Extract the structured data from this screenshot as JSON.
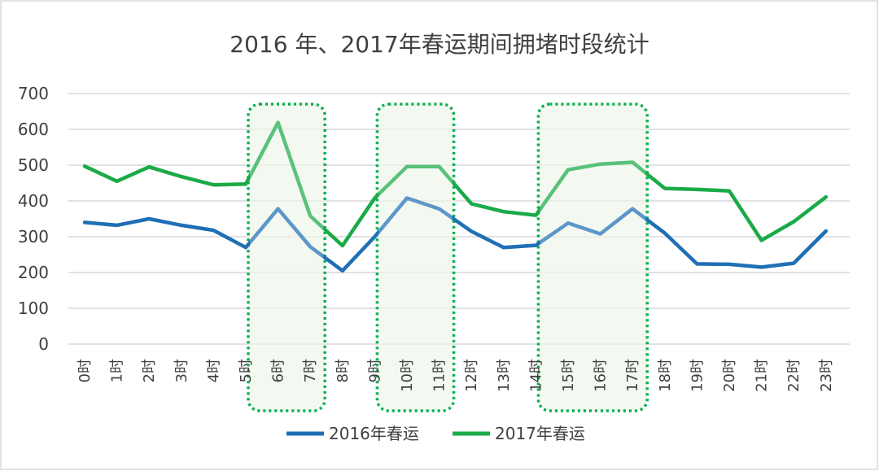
{
  "chart_data": {
    "type": "line",
    "title": "2016 年、2017年春运期间拥堵时段统计",
    "categories": [
      "0时",
      "1时",
      "2时",
      "3时",
      "4时",
      "5时",
      "6时",
      "7时",
      "8时",
      "9时",
      "10时",
      "11时",
      "12时",
      "13时",
      "14时",
      "15时",
      "16时",
      "17时",
      "18时",
      "19时",
      "20时",
      "21时",
      "22时",
      "23时"
    ],
    "series": [
      {
        "name": "2016年春运",
        "color": "#1f6fb5",
        "values": [
          340,
          332,
          350,
          332,
          318,
          270,
          378,
          272,
          205,
          300,
          408,
          378,
          315,
          270,
          276,
          338,
          308,
          378,
          310,
          224,
          223,
          215,
          226,
          316
        ]
      },
      {
        "name": "2017年春运",
        "color": "#1aaa47",
        "values": [
          497,
          455,
          495,
          468,
          445,
          447,
          619,
          358,
          275,
          408,
          496,
          496,
          392,
          370,
          360,
          487,
          503,
          508,
          435,
          432,
          428,
          290,
          342,
          411
        ]
      }
    ],
    "ylim": [
      0,
      700
    ],
    "yticks": [
      0,
      100,
      200,
      300,
      400,
      500,
      600,
      700
    ],
    "grid": true,
    "legend_position": "bottom",
    "highlight_ranges": [
      [
        "5时",
        "7时"
      ],
      [
        "9时",
        "11时"
      ],
      [
        "14时",
        "17时"
      ]
    ],
    "highlight_color": "#00b050"
  }
}
